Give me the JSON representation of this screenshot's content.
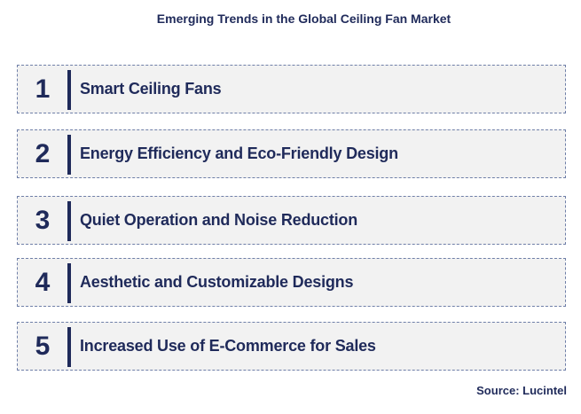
{
  "title": "Emerging Trends in the Global Ceiling Fan Market",
  "trends": [
    {
      "number": "1",
      "label": "Smart Ceiling Fans"
    },
    {
      "number": "2",
      "label": "Energy Efficiency and Eco-Friendly Design"
    },
    {
      "number": "3",
      "label": "Quiet Operation and Noise Reduction"
    },
    {
      "number": "4",
      "label": "Aesthetic and Customizable Designs"
    },
    {
      "number": "5",
      "label": "Increased Use of E-Commerce for Sales"
    }
  ],
  "source": "Source: Lucintel",
  "colors": {
    "text": "#1f2a5a",
    "box_fill": "#f2f2f2",
    "box_border": "#6f7fa8"
  }
}
